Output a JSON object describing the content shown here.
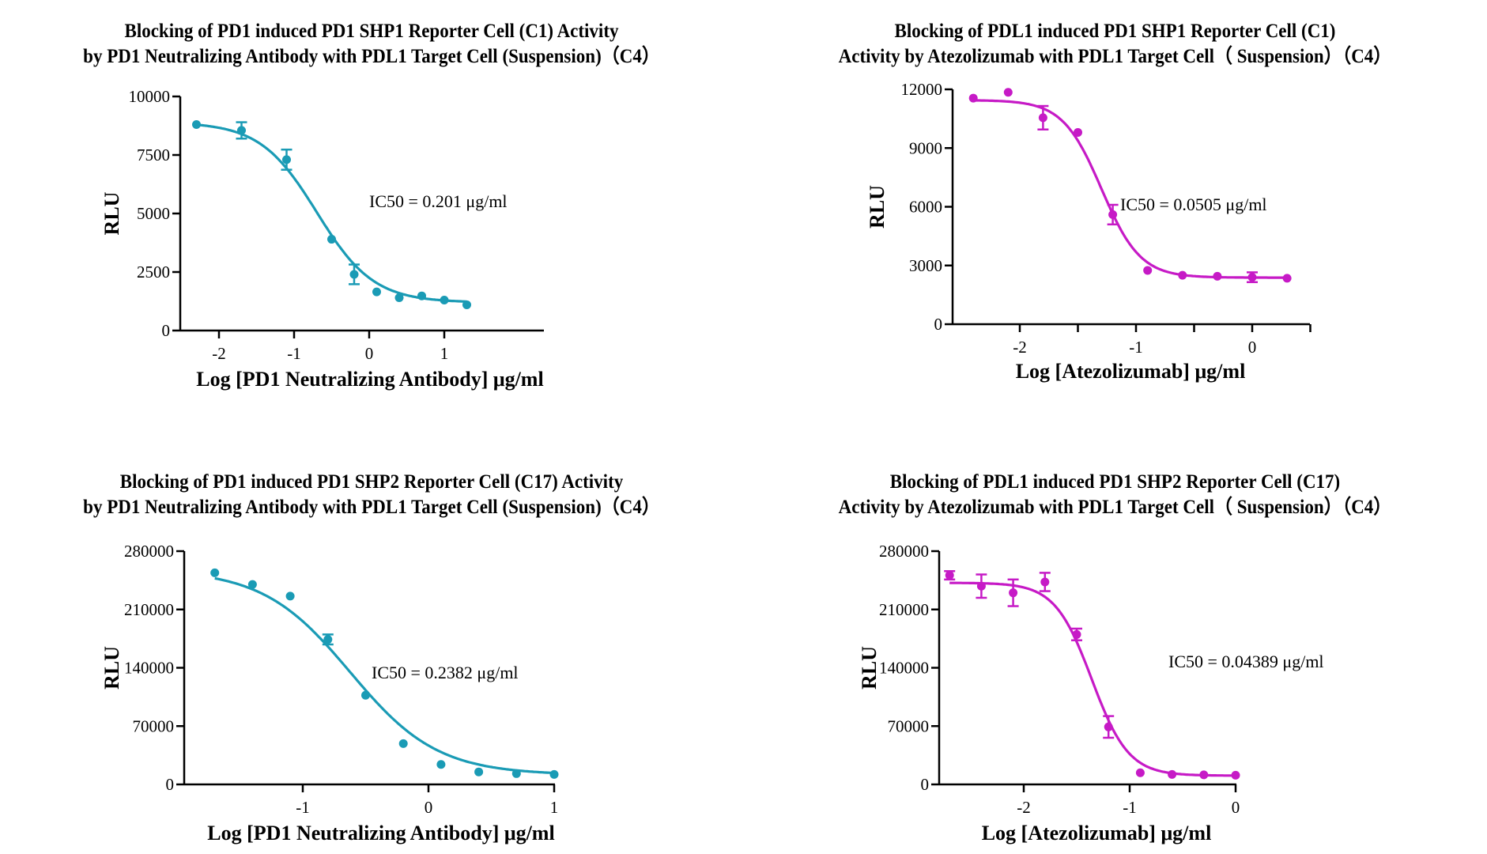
{
  "chart_data": [
    {
      "type": "scatter",
      "id": "c1",
      "title_lines": [
        "Blocking of PD1 induced PD1 SHP1 Reporter Cell  (C1) Activity",
        "by PD1 Neutralizing Antibody with PDL1 Target Cell (Suspension)（C4）"
      ],
      "xlabel": "Log [PD1 Neutralizing Antibody] μg/ml",
      "ylabel": "RLU",
      "xlim": [
        -2.5,
        1.5
      ],
      "ylim": [
        0,
        10000
      ],
      "xticks": [
        -2,
        -1,
        0,
        1
      ],
      "xtick_labels": [
        "-2",
        "-1",
        "0",
        "1"
      ],
      "yticks": [
        0,
        2500,
        5000,
        7500,
        10000
      ],
      "ytick_labels": [
        "0",
        "2500",
        "5000",
        "7500",
        "10000"
      ],
      "color": "#1a9bb5",
      "annotation": "IC50 = 0.201 μg/ml",
      "points": [
        {
          "x": -2.3,
          "y": 8800,
          "err": 0
        },
        {
          "x": -1.7,
          "y": 8550,
          "err": 350
        },
        {
          "x": -1.1,
          "y": 7300,
          "err": 430
        },
        {
          "x": -0.5,
          "y": 3900,
          "err": 0
        },
        {
          "x": -0.2,
          "y": 2400,
          "err": 420
        },
        {
          "x": 0.1,
          "y": 1650,
          "err": 0
        },
        {
          "x": 0.4,
          "y": 1400,
          "err": 0
        },
        {
          "x": 0.7,
          "y": 1480,
          "err": 0
        },
        {
          "x": 1.0,
          "y": 1300,
          "err": 0
        },
        {
          "x": 1.3,
          "y": 1100,
          "err": 0
        }
      ],
      "fit": {
        "top": 8900,
        "bottom": 1200,
        "logIC50": -0.697,
        "hill": 1.15
      }
    },
    {
      "type": "scatter",
      "id": "c2",
      "title_lines": [
        "Blocking of PDL1 induced PD1 SHP1 Reporter Cell (C1)",
        "Activity by Atezolizumab with PDL1 Target Cell（ Suspension）（C4）"
      ],
      "xlabel": "Log [Atezolizumab] μg/ml",
      "ylabel": "RLU",
      "xlim": [
        -2.5,
        0.5
      ],
      "ylim": [
        0,
        12000
      ],
      "xticks": [
        -2,
        -1.5,
        -1,
        -0.5,
        0,
        0.5
      ],
      "xtick_labels": [
        "-2",
        "",
        "-1",
        "",
        "0",
        ""
      ],
      "yticks": [
        0,
        3000,
        6000,
        9000,
        12000
      ],
      "ytick_labels": [
        "0",
        "3000",
        "6000",
        "9000",
        "12000"
      ],
      "color": "#c61ac6",
      "annotation": "IC50 = 0.0505 μg/ml",
      "points": [
        {
          "x": -2.4,
          "y": 11550,
          "err": 0
        },
        {
          "x": -2.1,
          "y": 11850,
          "err": 0
        },
        {
          "x": -1.8,
          "y": 10550,
          "err": 600
        },
        {
          "x": -1.5,
          "y": 9800,
          "err": 0
        },
        {
          "x": -1.2,
          "y": 5600,
          "err": 500
        },
        {
          "x": -0.9,
          "y": 2750,
          "err": 0
        },
        {
          "x": -0.6,
          "y": 2500,
          "err": 0
        },
        {
          "x": -0.3,
          "y": 2450,
          "err": 0
        },
        {
          "x": 0.0,
          "y": 2400,
          "err": 250
        },
        {
          "x": 0.3,
          "y": 2350,
          "err": 0
        }
      ],
      "fit": {
        "top": 11450,
        "bottom": 2380,
        "logIC50": -1.297,
        "hill": 2.6
      }
    },
    {
      "type": "scatter",
      "id": "c3",
      "title_lines": [
        "Blocking of PD1 induced PD1 SHP2 Reporter Cell (C17) Activity",
        "by PD1 Neutralizing Antibody with PDL1 Target Cell (Suspension)（C4）"
      ],
      "xlabel": "Log [PD1 Neutralizing Antibody] μg/ml",
      "ylabel": "RLU",
      "xlim": [
        -1.8,
        1.0
      ],
      "ylim": [
        0,
        280000
      ],
      "xticks": [
        -1,
        0,
        1
      ],
      "xtick_labels": [
        "-1",
        "0",
        "1"
      ],
      "yticks": [
        0,
        70000,
        140000,
        210000,
        280000
      ],
      "ytick_labels": [
        "0",
        "70000",
        "140000",
        "210000",
        "280000"
      ],
      "color": "#1a9bb5",
      "annotation": "IC50 = 0.2382 μg/ml",
      "points": [
        {
          "x": -1.7,
          "y": 254000,
          "err": 0
        },
        {
          "x": -1.4,
          "y": 240000,
          "err": 0
        },
        {
          "x": -1.1,
          "y": 226000,
          "err": 0
        },
        {
          "x": -0.8,
          "y": 174000,
          "err": 6000
        },
        {
          "x": -0.5,
          "y": 107000,
          "err": 0
        },
        {
          "x": -0.2,
          "y": 49000,
          "err": 0
        },
        {
          "x": 0.1,
          "y": 24000,
          "err": 0
        },
        {
          "x": 0.4,
          "y": 15000,
          "err": 0
        },
        {
          "x": 0.7,
          "y": 13000,
          "err": 0
        },
        {
          "x": 1.0,
          "y": 12000,
          "err": 0
        }
      ],
      "fit": {
        "top": 258000,
        "bottom": 11500,
        "logIC50": -0.623,
        "hill": 1.25
      }
    },
    {
      "type": "scatter",
      "id": "c4",
      "title_lines": [
        "Blocking of PDL1 induced PD1 SHP2 Reporter Cell (C17)",
        "Activity by Atezolizumab with PDL1 Target Cell（ Suspension）（C4）"
      ],
      "xlabel": "Log [Atezolizumab] μg/ml",
      "ylabel": "RLU",
      "xlim": [
        -2.8,
        0
      ],
      "ylim": [
        0,
        280000
      ],
      "xticks": [
        -2,
        -1,
        0
      ],
      "xtick_labels": [
        "-2",
        "-1",
        "0"
      ],
      "yticks": [
        0,
        70000,
        140000,
        210000,
        280000
      ],
      "ytick_labels": [
        "0",
        "70000",
        "140000",
        "210000",
        "280000"
      ],
      "color": "#c61ac6",
      "annotation": "IC50 = 0.04389 μg/ml",
      "points": [
        {
          "x": -2.7,
          "y": 251000,
          "err": 5000
        },
        {
          "x": -2.4,
          "y": 238000,
          "err": 14000
        },
        {
          "x": -2.1,
          "y": 230000,
          "err": 16000
        },
        {
          "x": -1.8,
          "y": 243000,
          "err": 11000
        },
        {
          "x": -1.5,
          "y": 180000,
          "err": 7000
        },
        {
          "x": -1.2,
          "y": 69000,
          "err": 13000
        },
        {
          "x": -0.9,
          "y": 14000,
          "err": 0
        },
        {
          "x": -0.6,
          "y": 12000,
          "err": 0
        },
        {
          "x": -0.3,
          "y": 11500,
          "err": 0
        },
        {
          "x": 0.0,
          "y": 11000,
          "err": 0
        }
      ],
      "fit": {
        "top": 242000,
        "bottom": 10500,
        "logIC50": -1.358,
        "hill": 2.5
      }
    }
  ]
}
